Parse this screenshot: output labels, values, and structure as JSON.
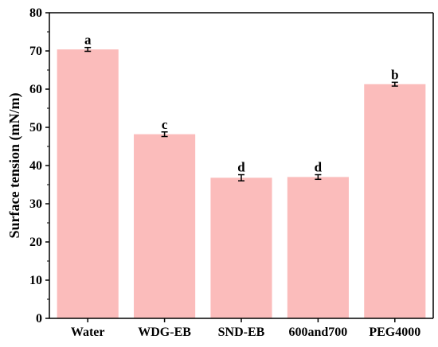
{
  "chart_data": {
    "type": "bar",
    "categories": [
      "Water",
      "WDG-EB",
      "SND-EB",
      "600and700",
      "PEG4000"
    ],
    "values": [
      70.4,
      48.2,
      36.8,
      37.0,
      61.3
    ],
    "errors": [
      0.5,
      0.6,
      0.8,
      0.6,
      0.5
    ],
    "significance": [
      "a",
      "c",
      "d",
      "d",
      "b"
    ],
    "title": "",
    "xlabel": "",
    "ylabel": "Surface tension (mN/m)",
    "ylim": [
      0,
      80
    ],
    "yticks": [
      "0",
      "10",
      "20",
      "30",
      "40",
      "50",
      "60",
      "70",
      "80"
    ],
    "grid": false,
    "legend": "none",
    "colors": {
      "bar": "#fbbcbb",
      "axis": "#000000",
      "error": "#000000"
    }
  }
}
